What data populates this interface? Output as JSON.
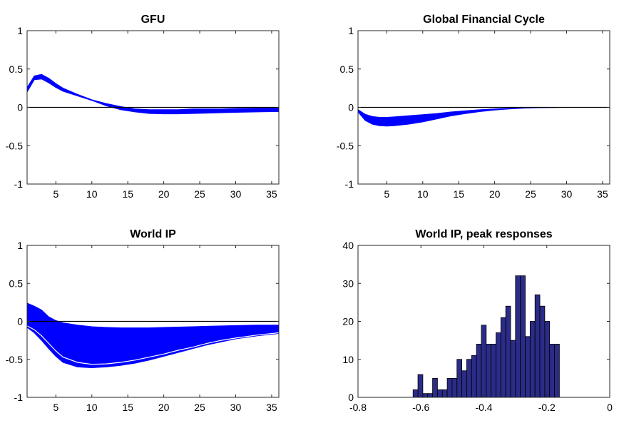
{
  "colors": {
    "band": "#0000ff",
    "bar": "#2b2b88",
    "bar_edge": "#000000",
    "zero_line": "#000000"
  },
  "chart_data": [
    {
      "type": "area",
      "title": "GFU",
      "xlim": [
        1,
        36
      ],
      "ylim": [
        -1,
        1
      ],
      "xticks": [
        5,
        10,
        15,
        20,
        25,
        30,
        35
      ],
      "yticks": [
        1,
        0.5,
        0,
        -0.5,
        -1
      ],
      "zero_line": true,
      "x": [
        1,
        2,
        3,
        4,
        5,
        6,
        8,
        10,
        12,
        14,
        16,
        18,
        20,
        22,
        24,
        26,
        28,
        30,
        33,
        36
      ],
      "upper": [
        0.26,
        0.41,
        0.43,
        0.38,
        0.31,
        0.25,
        0.17,
        0.1,
        0.05,
        0.01,
        -0.02,
        -0.03,
        -0.03,
        -0.03,
        -0.02,
        -0.02,
        -0.02,
        -0.015,
        -0.01,
        -0.01
      ],
      "lower": [
        0.2,
        0.36,
        0.37,
        0.32,
        0.26,
        0.21,
        0.15,
        0.09,
        0.02,
        -0.03,
        -0.06,
        -0.08,
        -0.085,
        -0.085,
        -0.08,
        -0.075,
        -0.07,
        -0.065,
        -0.06,
        -0.055
      ]
    },
    {
      "type": "area",
      "title": "Global Financial Cycle",
      "xlim": [
        1,
        36
      ],
      "ylim": [
        -1,
        1
      ],
      "xticks": [
        5,
        10,
        15,
        20,
        25,
        30,
        35
      ],
      "yticks": [
        1,
        0.5,
        0,
        -0.5,
        -1
      ],
      "zero_line": true,
      "x": [
        1,
        2,
        3,
        4,
        5,
        6,
        8,
        10,
        12,
        14,
        16,
        18,
        20,
        22,
        24,
        26,
        28,
        30,
        33,
        36
      ],
      "upper": [
        -0.03,
        -0.09,
        -0.12,
        -0.13,
        -0.13,
        -0.125,
        -0.11,
        -0.095,
        -0.08,
        -0.06,
        -0.045,
        -0.03,
        -0.02,
        -0.012,
        -0.006,
        -0.003,
        -0.001,
        0,
        0,
        0
      ],
      "lower": [
        -0.06,
        -0.17,
        -0.22,
        -0.24,
        -0.245,
        -0.24,
        -0.22,
        -0.19,
        -0.15,
        -0.11,
        -0.08,
        -0.055,
        -0.035,
        -0.02,
        -0.01,
        -0.005,
        -0.002,
        0,
        0,
        0
      ]
    },
    {
      "type": "area",
      "title": "World IP",
      "xlim": [
        1,
        36
      ],
      "ylim": [
        -1,
        1
      ],
      "xticks": [
        5,
        10,
        15,
        20,
        25,
        30,
        35
      ],
      "yticks": [
        1,
        0.5,
        0,
        -0.5,
        -1
      ],
      "zero_line": true,
      "x": [
        1,
        2,
        3,
        4,
        5,
        6,
        8,
        10,
        12,
        14,
        16,
        18,
        20,
        22,
        24,
        26,
        28,
        30,
        33,
        36
      ],
      "upper": [
        0.24,
        0.2,
        0.15,
        0.06,
        0.01,
        -0.02,
        -0.05,
        -0.07,
        -0.08,
        -0.085,
        -0.085,
        -0.085,
        -0.08,
        -0.075,
        -0.07,
        -0.065,
        -0.06,
        -0.055,
        -0.05,
        -0.05
      ],
      "lower": [
        -0.08,
        -0.15,
        -0.25,
        -0.36,
        -0.46,
        -0.54,
        -0.6,
        -0.61,
        -0.6,
        -0.58,
        -0.55,
        -0.51,
        -0.46,
        -0.41,
        -0.36,
        -0.31,
        -0.27,
        -0.23,
        -0.19,
        -0.16
      ],
      "highlight": {
        "color": "#ffffff",
        "y": [
          -0.06,
          -0.11,
          -0.19,
          -0.29,
          -0.39,
          -0.47,
          -0.54,
          -0.565,
          -0.56,
          -0.54,
          -0.51,
          -0.47,
          -0.43,
          -0.38,
          -0.34,
          -0.29,
          -0.25,
          -0.22,
          -0.18,
          -0.15
        ]
      }
    },
    {
      "type": "bar",
      "title": "World IP, peak responses",
      "xlim": [
        -0.8,
        0
      ],
      "ylim": [
        0,
        40
      ],
      "xticks": [
        -0.8,
        -0.6,
        -0.4,
        -0.2,
        0
      ],
      "xtick_labels": [
        "-0.8",
        "-0.6",
        "-0.4",
        "-0.2",
        "0"
      ],
      "yticks": [
        40,
        30,
        20,
        10,
        0
      ],
      "bin_width": 0.0155,
      "bin_start": -0.625,
      "counts": [
        2,
        6,
        1,
        1,
        5,
        2,
        2,
        5,
        5,
        10,
        7,
        10,
        11,
        14,
        19,
        14,
        14,
        17,
        21,
        24,
        15,
        32,
        32,
        16,
        20,
        27,
        24,
        20,
        14,
        14
      ]
    }
  ]
}
